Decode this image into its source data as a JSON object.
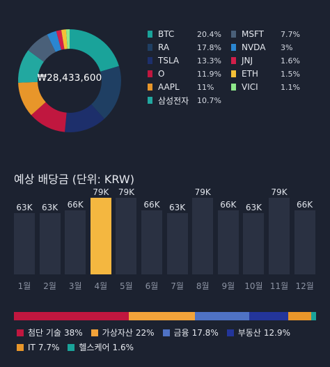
{
  "portfolio": {
    "total": "₩28,433,600",
    "holdings": [
      {
        "name": "BTC",
        "pct": "20.4%",
        "value": 20.4,
        "color": "#1aa39a"
      },
      {
        "name": "RA",
        "pct": "17.8%",
        "value": 17.8,
        "color": "#1f3f63"
      },
      {
        "name": "TSLA",
        "pct": "13.3%",
        "value": 13.3,
        "color": "#1d2f6b"
      },
      {
        "name": "O",
        "pct": "11.9%",
        "value": 11.9,
        "color": "#c0173f"
      },
      {
        "name": "AAPL",
        "pct": "11%",
        "value": 11.0,
        "color": "#e8962a"
      },
      {
        "name": "삼성전자",
        "pct": "10.7%",
        "value": 10.7,
        "color": "#22a8a0"
      },
      {
        "name": "MSFT",
        "pct": "7.7%",
        "value": 7.7,
        "color": "#4a6079"
      },
      {
        "name": "NVDA",
        "pct": "3%",
        "value": 3.0,
        "color": "#2a86d1"
      },
      {
        "name": "JNJ",
        "pct": "1.6%",
        "value": 1.6,
        "color": "#d11f4a"
      },
      {
        "name": "ETH",
        "pct": "1.5%",
        "value": 1.5,
        "color": "#f4c037"
      },
      {
        "name": "VICI",
        "pct": "1.1%",
        "value": 1.1,
        "color": "#8ee88a"
      }
    ]
  },
  "dividends": {
    "title": "예상 배당금 (단위: KRW)",
    "highlight_month_index": 3,
    "highlight_color": "#f4b740",
    "bar_color": "#2a3142",
    "chart_data": {
      "type": "bar",
      "categories": [
        "1월",
        "2월",
        "3월",
        "4월",
        "5월",
        "6월",
        "7월",
        "8월",
        "9월",
        "10월",
        "11월",
        "12월"
      ],
      "values": [
        63,
        63,
        66,
        79,
        79,
        66,
        63,
        79,
        66,
        63,
        79,
        66
      ],
      "value_labels": [
        "63K",
        "63K",
        "66K",
        "79K",
        "79K",
        "66K",
        "63K",
        "79K",
        "66K",
        "63K",
        "79K",
        "66K"
      ],
      "ylim": [
        0,
        79
      ]
    }
  },
  "categories": [
    {
      "name": "첨단 기술",
      "pct": "38%",
      "value": 38,
      "color": "#c0173f"
    },
    {
      "name": "가상자산",
      "pct": "22%",
      "value": 22,
      "color": "#f2a33a"
    },
    {
      "name": "금융",
      "pct": "17.8%",
      "value": 17.8,
      "color": "#4f72c4"
    },
    {
      "name": "부동산",
      "pct": "12.9%",
      "value": 12.9,
      "color": "#23359a"
    },
    {
      "name": "IT",
      "pct": "7.7%",
      "value": 7.7,
      "color": "#e8962a"
    },
    {
      "name": "헬스케어",
      "pct": "1.6%",
      "value": 1.6,
      "color": "#1aa39a"
    }
  ]
}
